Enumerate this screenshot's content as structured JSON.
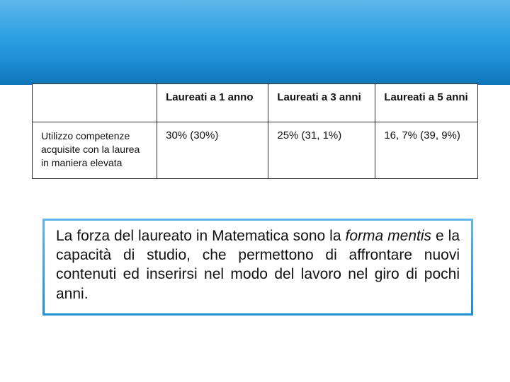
{
  "table": {
    "columns": [
      "",
      "Laureati a 1 anno",
      "Laureati a 3 anni",
      "Laureati a 5 anni"
    ],
    "row_label": "Utilizzo competenze acquisite con la laurea in maniera elevata",
    "values": [
      "30% (30%)",
      "25% (31, 1%)",
      "16, 7% (39, 9%)"
    ],
    "border_color": "#333333",
    "header_fontsize": 15,
    "cell_fontsize": 15,
    "rowlabel_fontsize": 14,
    "background_color": "#ffffff"
  },
  "banner": {
    "gradient_top": "#5fb7ea",
    "gradient_bottom": "#0f75b8"
  },
  "paragraph": {
    "leading": "La forza del laureato in Matematica sono la ",
    "emphasis": "forma mentis",
    "trailing": " e la capacità di studio, che permettono di affrontare nuovi contenuti ed inserirsi nel modo del lavoro nel giro di pochi anni.",
    "fontsize": 21,
    "border_color_top": "#5fb7ea",
    "border_color_bottom": "#1f8fd6",
    "text_color": "#111111"
  }
}
